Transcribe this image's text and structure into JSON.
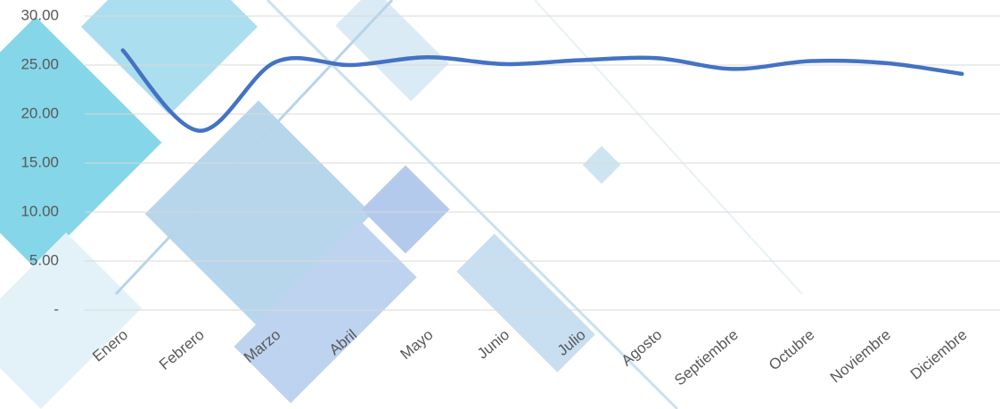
{
  "chart_data": {
    "type": "line",
    "categories": [
      "Enero",
      "Febrero",
      "Marzo",
      "Abril",
      "Mayo",
      "Junio",
      "Julio",
      "Agosto",
      "Septiembre",
      "Octubre",
      "Noviembre",
      "Diciembre"
    ],
    "series": [
      {
        "color": "#4472c4",
        "values": [
          26.5,
          18.3,
          25.3,
          25.0,
          25.8,
          25.1,
          25.5,
          25.7,
          24.6,
          25.4,
          25.2,
          24.1
        ]
      }
    ],
    "ylim": [
      0,
      30
    ],
    "yticks": [
      {
        "value": 0,
        "label": "-"
      },
      {
        "value": 5,
        "label": "5.00"
      },
      {
        "value": 10,
        "label": "10.00"
      },
      {
        "value": 15,
        "label": "15.00"
      },
      {
        "value": 20,
        "label": "20.00"
      },
      {
        "value": 25,
        "label": "25.00"
      },
      {
        "value": 30,
        "label": "30.00"
      }
    ],
    "grid": true,
    "smooth": true
  }
}
